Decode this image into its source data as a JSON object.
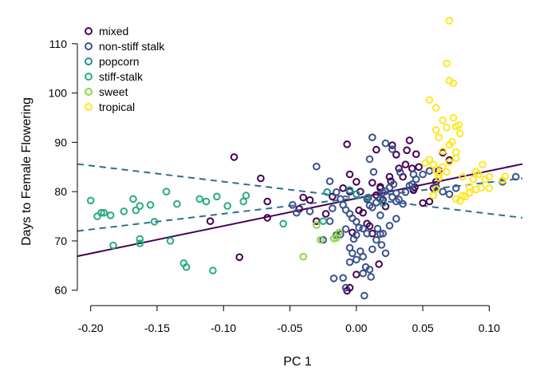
{
  "chart_data": {
    "type": "scatter",
    "title": "",
    "xlabel": "PC 1",
    "ylabel": "Days to Female Flowering",
    "xlim": [
      -0.21,
      0.125
    ],
    "ylim": [
      58.5,
      114.5
    ],
    "x_ticks": [
      -0.2,
      -0.15,
      -0.1,
      -0.05,
      0.0,
      0.05,
      0.1
    ],
    "x_tick_labels": [
      "-0.20",
      "-0.15",
      "-0.10",
      "-0.05",
      "0.00",
      "0.05",
      "0.10"
    ],
    "y_ticks": [
      60,
      70,
      80,
      90,
      100,
      110
    ],
    "y_tick_labels": [
      "60",
      "70",
      "80",
      "90",
      "100",
      "110"
    ],
    "legend_position": "top-left",
    "grid": false,
    "series": [
      {
        "name": "mixed",
        "color": "#440154",
        "points": [
          [
            -0.092,
            87
          ],
          [
            -0.072,
            82.7
          ],
          [
            -0.067,
            78
          ],
          [
            -0.067,
            74.7
          ],
          [
            -0.04,
            78.8
          ],
          [
            -0.035,
            78.3
          ],
          [
            -0.043,
            76.5
          ],
          [
            -0.023,
            75.5
          ],
          [
            -0.03,
            74
          ],
          [
            -0.018,
            79
          ],
          [
            -0.01,
            80.7
          ],
          [
            -0.005,
            83.5
          ],
          [
            -0.005,
            80
          ],
          [
            -0.007,
            89.6
          ],
          [
            0.0,
            82
          ],
          [
            0.003,
            80
          ],
          [
            0.005,
            75.7
          ],
          [
            0.008,
            78.5
          ],
          [
            0.01,
            73
          ],
          [
            0.015,
            79.3
          ],
          [
            0.018,
            80.7
          ],
          [
            0.02,
            78.3
          ],
          [
            0.022,
            77
          ],
          [
            0.015,
            88.5
          ],
          [
            0.025,
            83
          ],
          [
            0.027,
            89.4
          ],
          [
            0.03,
            87.5
          ],
          [
            0.032,
            84.7
          ],
          [
            0.035,
            83
          ],
          [
            0.037,
            85.5
          ],
          [
            0.038,
            88.4
          ],
          [
            0.04,
            90.4
          ],
          [
            0.042,
            84.7
          ],
          [
            0.045,
            87.6
          ],
          [
            0.047,
            85
          ],
          [
            0.044,
            80.9
          ],
          [
            0.05,
            77.7
          ],
          [
            0.043,
            80.3
          ],
          [
            0.055,
            78
          ],
          [
            0.058,
            80.7
          ],
          [
            0.06,
            82
          ],
          [
            0.062,
            84.3
          ],
          [
            0.065,
            87.9
          ],
          [
            0.07,
            86.4
          ],
          [
            -0.088,
            66.7
          ],
          [
            0.0,
            63.2
          ],
          [
            -0.005,
            60.5
          ],
          [
            -0.007,
            59.9
          ],
          [
            0.017,
            65.3
          ],
          [
            0.012,
            71.5
          ],
          [
            0.008,
            73.5
          ],
          [
            0.018,
            81
          ],
          [
            0.002,
            76.2
          ],
          [
            -0.003,
            71.7
          ],
          [
            0.012,
            81.8
          ],
          [
            0.026,
            82.1
          ],
          [
            -0.11,
            74
          ]
        ]
      },
      {
        "name": "non-stiff stalk",
        "color": "#3B528B",
        "points": [
          [
            -0.03,
            85.1
          ],
          [
            -0.02,
            82.1
          ],
          [
            -0.015,
            79.9
          ],
          [
            -0.012,
            78.5
          ],
          [
            -0.01,
            77.3
          ],
          [
            -0.008,
            76.3
          ],
          [
            -0.005,
            75.5
          ],
          [
            -0.003,
            74.6
          ],
          [
            0.0,
            73.9
          ],
          [
            0.002,
            72.7
          ],
          [
            0.005,
            72.5
          ],
          [
            0.008,
            71.5
          ],
          [
            0.01,
            77.2
          ],
          [
            0.012,
            76.8
          ],
          [
            0.015,
            77.8
          ],
          [
            0.018,
            78.5
          ],
          [
            0.02,
            79.8
          ],
          [
            0.022,
            80.1
          ],
          [
            0.025,
            80.8
          ],
          [
            0.028,
            81.5
          ],
          [
            0.03,
            79.7
          ],
          [
            0.032,
            78.4
          ],
          [
            0.035,
            77.5
          ],
          [
            0.037,
            79.9
          ],
          [
            0.04,
            81.2
          ],
          [
            0.042,
            81.5
          ],
          [
            0.045,
            82.5
          ],
          [
            0.05,
            83.5
          ],
          [
            0.055,
            84.2
          ],
          [
            0.06,
            81
          ],
          [
            0.065,
            80
          ],
          [
            0.07,
            79.5
          ],
          [
            0.075,
            80.7
          ],
          [
            0.11,
            82
          ],
          [
            0.12,
            83
          ],
          [
            0.012,
            91
          ],
          [
            0.022,
            89.8
          ],
          [
            0.027,
            88.6
          ],
          [
            0.01,
            86.6
          ],
          [
            0.013,
            84
          ],
          [
            -0.025,
            70.2
          ],
          [
            -0.02,
            74
          ],
          [
            -0.018,
            76.6
          ],
          [
            -0.015,
            71.2
          ],
          [
            -0.012,
            71.3
          ],
          [
            -0.008,
            72.4
          ],
          [
            -0.005,
            68.6
          ],
          [
            -0.003,
            67.5
          ],
          [
            0.0,
            66.2
          ],
          [
            0.003,
            67.9
          ],
          [
            0.005,
            66.8
          ],
          [
            0.007,
            64.7
          ],
          [
            0.01,
            64.2
          ],
          [
            0.012,
            68.3
          ],
          [
            0.015,
            70.2
          ],
          [
            0.018,
            71.4
          ],
          [
            0.02,
            71.5
          ],
          [
            0.025,
            73.1
          ],
          [
            0.03,
            74.5
          ],
          [
            -0.005,
            65.7
          ],
          [
            -0.01,
            62.5
          ],
          [
            -0.008,
            60.5
          ],
          [
            0.005,
            63.4
          ],
          [
            0.006,
            58.9
          ],
          [
            0.0,
            71.2
          ],
          [
            -0.045,
            75.7
          ],
          [
            -0.048,
            77.3
          ],
          [
            -0.035,
            76
          ],
          [
            0.019,
            69.2
          ],
          [
            0.022,
            67.5
          ],
          [
            0.016,
            72.5
          ],
          [
            0.043,
            83.5
          ],
          [
            0.033,
            83.9
          ],
          [
            -0.002,
            70.4
          ],
          [
            0.009,
            78.8
          ],
          [
            0.018,
            75.2
          ],
          [
            -0.017,
            62.4
          ],
          [
            0.011,
            62.7
          ],
          [
            0.027,
            78.9
          ],
          [
            0.03,
            78
          ]
        ]
      },
      {
        "name": "popcorn",
        "color": "#21908C",
        "points": [
          [
            -0.022,
            79.9
          ],
          [
            -0.005,
            80.3
          ],
          [
            0.0,
            79.5
          ],
          [
            0.008,
            78.7
          ],
          [
            0.02,
            77.7
          ]
        ]
      },
      {
        "name": "stiff-stalk",
        "color": "#27AD81",
        "points": [
          [
            -0.2,
            78.2
          ],
          [
            -0.195,
            75
          ],
          [
            -0.192,
            75.7
          ],
          [
            -0.19,
            75.7
          ],
          [
            -0.185,
            75.2
          ],
          [
            -0.183,
            69.1
          ],
          [
            -0.175,
            76
          ],
          [
            -0.168,
            78.5
          ],
          [
            -0.166,
            76.2
          ],
          [
            -0.163,
            77.1
          ],
          [
            -0.163,
            70.4
          ],
          [
            -0.163,
            69.5
          ],
          [
            -0.155,
            77.3
          ],
          [
            -0.152,
            73.9
          ],
          [
            -0.143,
            80
          ],
          [
            -0.14,
            70
          ],
          [
            -0.135,
            77.5
          ],
          [
            -0.13,
            65.5
          ],
          [
            -0.128,
            64.7
          ],
          [
            -0.118,
            78.5
          ],
          [
            -0.113,
            78
          ],
          [
            -0.108,
            64
          ],
          [
            -0.105,
            79
          ],
          [
            -0.097,
            77.1
          ],
          [
            -0.085,
            78
          ],
          [
            -0.083,
            79.2
          ],
          [
            -0.055,
            73.5
          ],
          [
            -0.025,
            74
          ]
        ]
      },
      {
        "name": "sweet",
        "color": "#8FD744",
        "points": [
          [
            -0.04,
            66.8
          ],
          [
            -0.03,
            73.2
          ],
          [
            -0.027,
            70.2
          ],
          [
            -0.017,
            70.5
          ],
          [
            -0.015,
            70.6
          ],
          [
            -0.013,
            71.7
          ]
        ]
      },
      {
        "name": "tropical",
        "color": "#FDE725",
        "points": [
          [
            0.07,
            114.7
          ],
          [
            0.068,
            106
          ],
          [
            0.07,
            102.5
          ],
          [
            0.073,
            102
          ],
          [
            0.055,
            98.6
          ],
          [
            0.06,
            97
          ],
          [
            0.065,
            94.5
          ],
          [
            0.068,
            93
          ],
          [
            0.073,
            95
          ],
          [
            0.075,
            93.2
          ],
          [
            0.077,
            93.5
          ],
          [
            0.078,
            91.8
          ],
          [
            0.06,
            92.5
          ],
          [
            0.062,
            91
          ],
          [
            0.07,
            89.5
          ],
          [
            0.072,
            90.1
          ],
          [
            0.075,
            88
          ],
          [
            0.065,
            88.2
          ],
          [
            0.055,
            86.5
          ],
          [
            0.058,
            85.5
          ],
          [
            0.06,
            84.3
          ],
          [
            0.062,
            83.4
          ],
          [
            0.065,
            85
          ],
          [
            0.068,
            84
          ],
          [
            0.07,
            86
          ],
          [
            0.075,
            86.8
          ],
          [
            0.08,
            83
          ],
          [
            0.082,
            79
          ],
          [
            0.085,
            81
          ],
          [
            0.088,
            82.5
          ],
          [
            0.09,
            84
          ],
          [
            0.092,
            83.5
          ],
          [
            0.095,
            85.5
          ],
          [
            0.097,
            82.5
          ],
          [
            0.1,
            83
          ],
          [
            0.1,
            80.7
          ],
          [
            0.11,
            82.3
          ],
          [
            0.112,
            83.1
          ],
          [
            0.085,
            79.7
          ],
          [
            0.08,
            79.2
          ],
          [
            0.058,
            79.2
          ],
          [
            0.06,
            80.5
          ],
          [
            0.075,
            78.5
          ],
          [
            0.078,
            78.1
          ],
          [
            0.09,
            80.4
          ],
          [
            0.052,
            85.8
          ],
          [
            0.062,
            82.8
          ],
          [
            0.094,
            80.8
          ]
        ]
      }
    ],
    "lines": [
      {
        "color": "#440154",
        "style": "solid",
        "x": [
          -0.21,
          0.125
        ],
        "y": [
          66.9,
          85.6
        ]
      },
      {
        "color": "#2F6D8E",
        "style": "dashed",
        "x": [
          -0.21,
          0.125
        ],
        "y": [
          85.6,
          74.7
        ]
      },
      {
        "color": "#2F6D8E",
        "style": "dashed",
        "x": [
          -0.21,
          0.125
        ],
        "y": [
          72.0,
          82.7
        ]
      }
    ]
  }
}
